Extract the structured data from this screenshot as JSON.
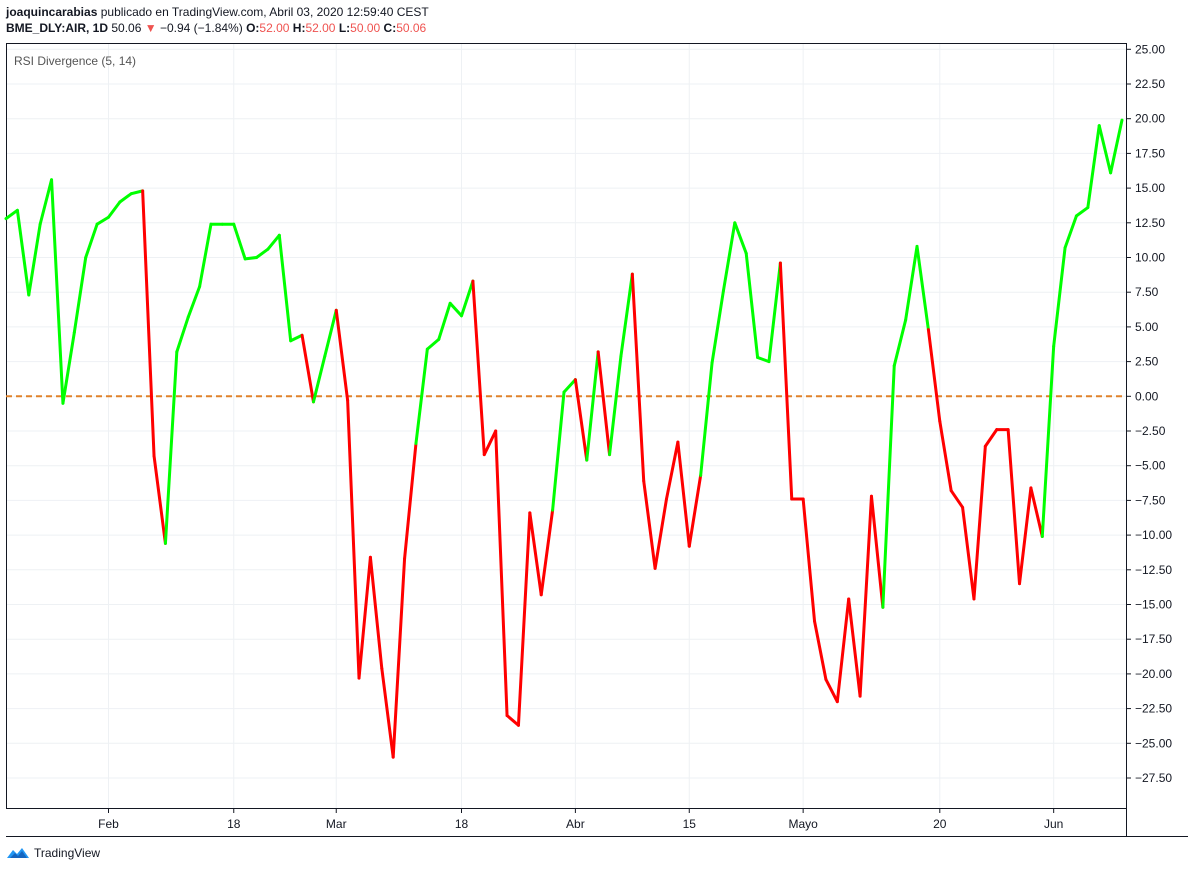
{
  "header": {
    "author": "joaquincarabias",
    "published": "publicado en TradingView.com, Abril 03, 2020 12:59:40 CEST",
    "symbol": "BME_DLY:AIR, 1D",
    "price": "50.06",
    "change": "−0.94 (−1.84%)",
    "o_label": "O:",
    "o": "52.00",
    "h_label": "H:",
    "h": "52.00",
    "l_label": "L:",
    "l": "50.00",
    "c_label": "C:",
    "c": "50.06"
  },
  "footer": {
    "brand": "TradingView"
  },
  "colors": {
    "up": "#00ff00",
    "down": "#ff0000",
    "zero": "#e0822a",
    "grid": "#eef1f4",
    "axis": "#131722"
  },
  "chart_data": {
    "type": "line",
    "title": "RSI Divergence (5, 14)",
    "ylim": [
      -30,
      25
    ],
    "yticks": [
      25,
      22.5,
      20,
      17.5,
      15,
      12.5,
      10,
      7.5,
      5,
      2.5,
      0,
      -2.5,
      -5,
      -7.5,
      -10,
      -12.5,
      -15,
      -17.5,
      -20,
      -22.5,
      -25,
      -27.5
    ],
    "ytick_labels": [
      "25.00",
      "22.50",
      "20.00",
      "17.50",
      "15.00",
      "12.50",
      "10.00",
      "7.50",
      "5.00",
      "2.50",
      "0.00",
      "−2.50",
      "−5.00",
      "−7.50",
      "−10.00",
      "−12.50",
      "−15.00",
      "−17.50",
      "−20.00",
      "−22.50",
      "−25.00",
      "−27.50"
    ],
    "x_labels": [
      {
        "label": "Feb",
        "i": 9
      },
      {
        "label": "18",
        "i": 20
      },
      {
        "label": "Mar",
        "i": 29
      },
      {
        "label": "18",
        "i": 40
      },
      {
        "label": "Abr",
        "i": 50
      },
      {
        "label": "15",
        "i": 60
      },
      {
        "label": "Mayo",
        "i": 70
      },
      {
        "label": "20",
        "i": 82
      },
      {
        "label": "Jun",
        "i": 92
      }
    ],
    "zero_line": 0,
    "grid": true,
    "series": [
      {
        "values": [
          12.8,
          13.4,
          7.3,
          12.4,
          15.6,
          -0.5,
          4.6,
          10.0,
          12.4,
          12.9,
          14.0,
          14.6,
          14.8,
          -4.3,
          -10.6,
          3.2,
          5.7,
          7.9,
          12.4,
          12.4,
          12.4,
          9.9,
          10.0,
          10.6,
          11.6,
          4.0,
          4.4,
          -0.4,
          2.9,
          6.2,
          -0.3,
          -20.3,
          -11.6,
          -19.6,
          -26.0,
          -11.7,
          -3.4,
          3.4,
          4.1,
          6.7,
          5.8,
          8.3,
          -4.2,
          -2.5,
          -23.0,
          -23.7,
          -8.4,
          -14.3,
          -8.2,
          0.3,
          1.2,
          -4.6,
          3.2,
          -4.2,
          2.9,
          8.8,
          -6.1,
          -12.4,
          -7.4,
          -3.3,
          -10.8,
          -5.7,
          2.4,
          7.6,
          12.5,
          10.3,
          2.8,
          2.5,
          9.6,
          -7.4,
          -7.4,
          -16.2,
          -20.4,
          -22.0,
          -14.6,
          -21.6,
          -7.2,
          -15.2,
          2.2,
          5.5,
          10.8,
          4.8,
          -1.8,
          -6.8,
          -8.0,
          -14.6,
          -3.6,
          -2.4,
          -2.4,
          -13.5,
          -6.6,
          -10.1,
          3.6,
          10.7,
          13.0,
          13.6,
          19.5,
          16.1,
          19.9
        ],
        "colors": [
          "up",
          "up",
          "up",
          "up",
          "up",
          "up",
          "up",
          "up",
          "up",
          "up",
          "up",
          "up",
          "down",
          "down",
          "up",
          "up",
          "up",
          "up",
          "up",
          "up",
          "up",
          "up",
          "up",
          "up",
          "up",
          "up",
          "down",
          "up",
          "up",
          "down",
          "down",
          "down",
          "down",
          "down",
          "down",
          "down",
          "up",
          "up",
          "up",
          "up",
          "up",
          "down",
          "down",
          "down",
          "down",
          "down",
          "down",
          "down",
          "up",
          "up",
          "down",
          "up",
          "down",
          "up",
          "up",
          "down",
          "down",
          "down",
          "down",
          "down",
          "down",
          "up",
          "up",
          "up",
          "up",
          "up",
          "up",
          "up",
          "down",
          "down",
          "down",
          "down",
          "down",
          "down",
          "down",
          "down",
          "down",
          "up",
          "up",
          "up",
          "up",
          "down",
          "down",
          "down",
          "down",
          "down",
          "down",
          "down",
          "down",
          "down",
          "down",
          "up",
          "up",
          "up",
          "up",
          "up",
          "up",
          "up"
        ]
      }
    ]
  }
}
